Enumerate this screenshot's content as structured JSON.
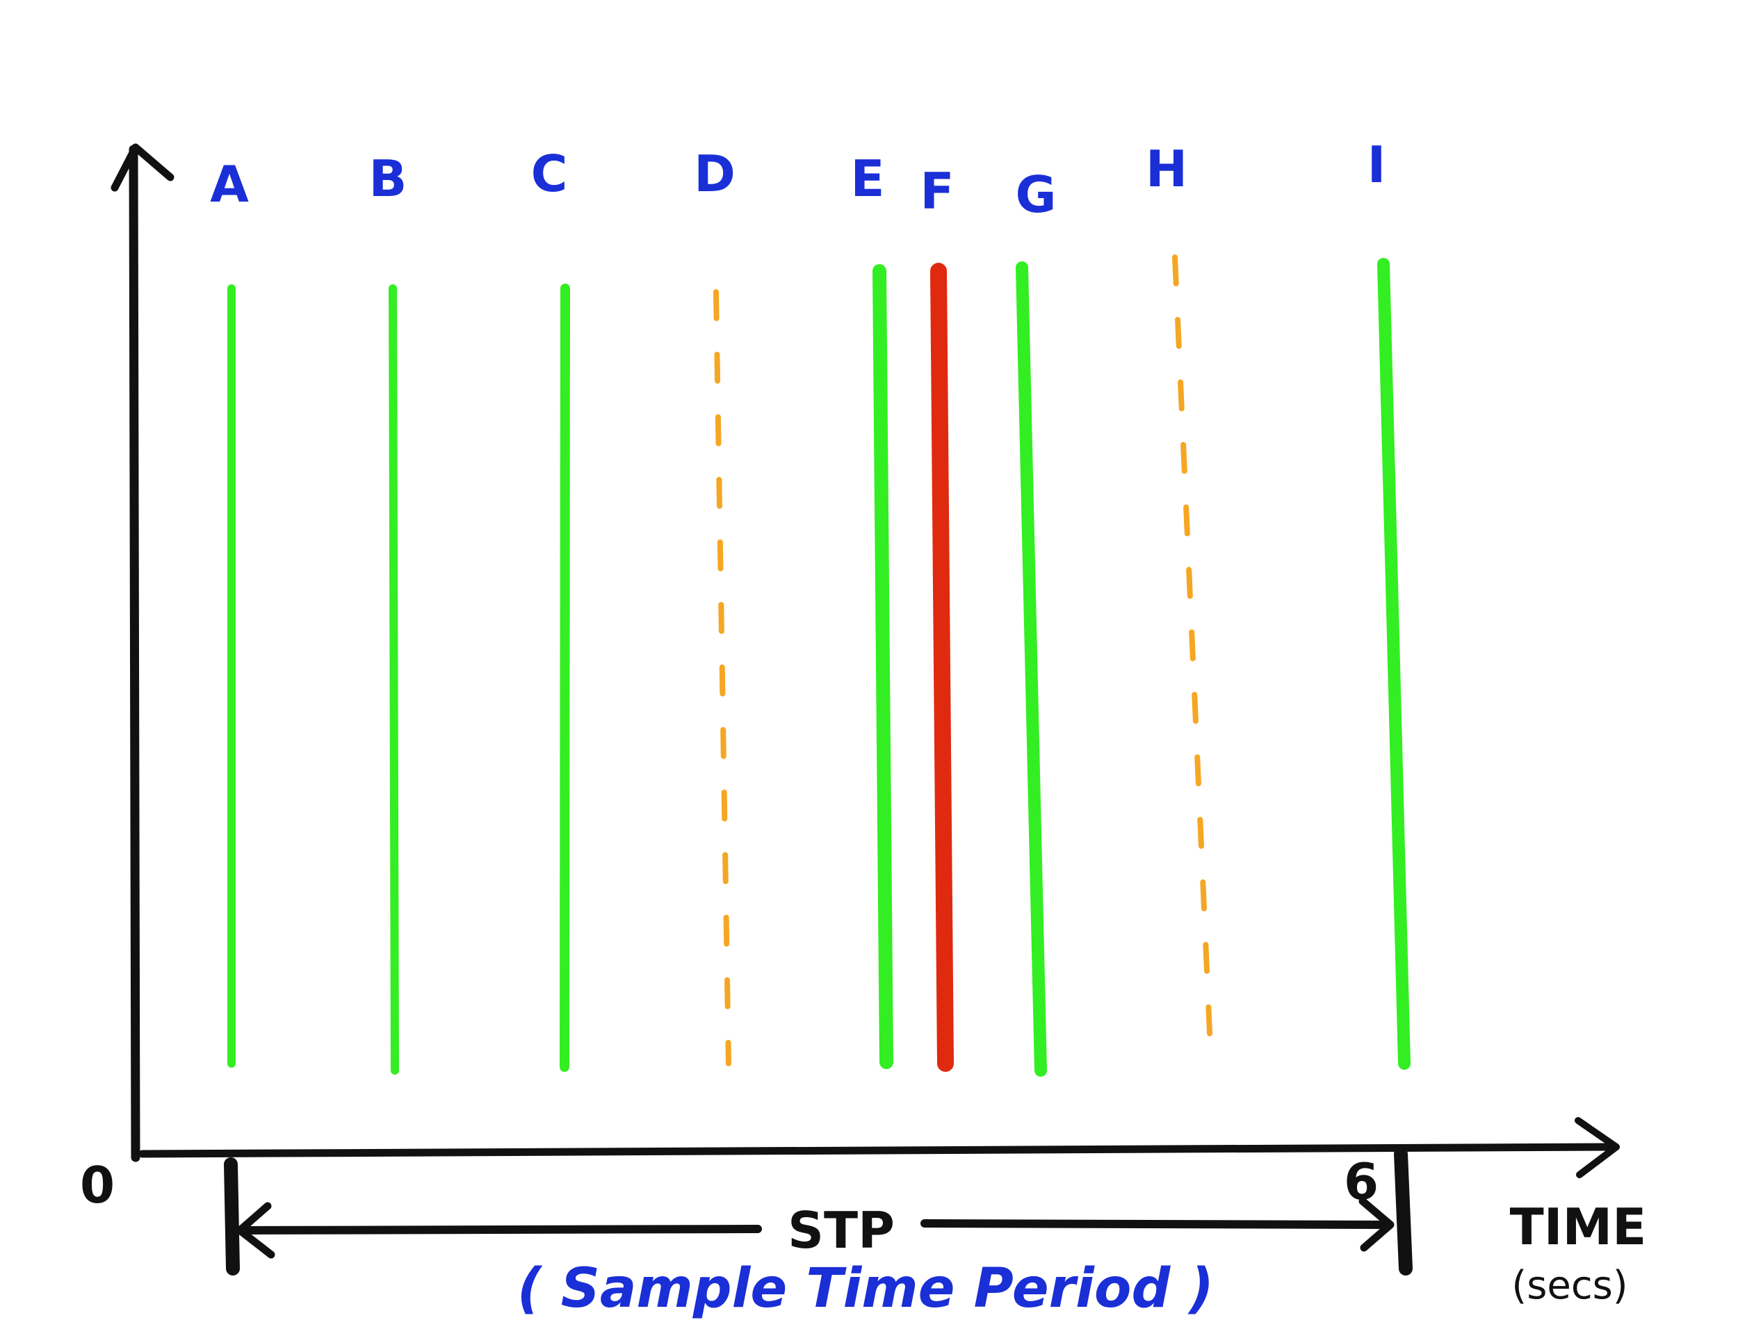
{
  "diagram": {
    "origin_label": "0",
    "end_label": "6",
    "x_axis_label": "TIME",
    "x_axis_unit": "(secs)",
    "span_label": "STP",
    "span_caption": "( Sample Time Period )",
    "events": [
      {
        "label": "A",
        "status": "green",
        "line": "solid"
      },
      {
        "label": "B",
        "status": "green",
        "line": "solid"
      },
      {
        "label": "C",
        "status": "green",
        "line": "solid"
      },
      {
        "label": "D",
        "status": "orange",
        "line": "dashed"
      },
      {
        "label": "E",
        "status": "green",
        "line": "solid"
      },
      {
        "label": "F",
        "status": "red",
        "line": "solid"
      },
      {
        "label": "G",
        "status": "green",
        "line": "solid"
      },
      {
        "label": "H",
        "status": "orange",
        "line": "dashed"
      },
      {
        "label": "I",
        "status": "green",
        "line": "solid"
      }
    ],
    "colors": {
      "green": "#33ee22",
      "orange": "#f5a623",
      "red": "#e02a10",
      "label": "#1a2fd6",
      "ink": "#111111"
    }
  }
}
